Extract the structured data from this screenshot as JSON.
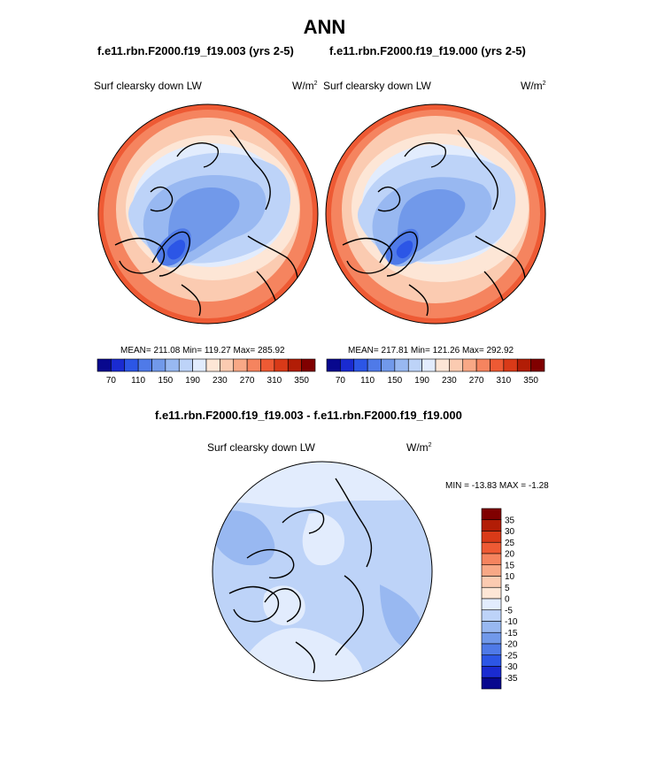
{
  "page": {
    "title": "ANN"
  },
  "panels": [
    {
      "case": "f.e11.rbn.F2000.f19_f19.003 (yrs 2-5)",
      "variable": "Surf clearsky down LW",
      "units": "W/m",
      "units_sup": "2",
      "stats": "MEAN= 211.08  Min= 119.27  Max= 285.92"
    },
    {
      "case": "f.e11.rbn.F2000.f19_f19.000 (yrs 2-5)",
      "variable": "Surf clearsky down LW",
      "units": "W/m",
      "units_sup": "2",
      "stats": "MEAN= 217.81  Min= 121.26  Max= 292.92"
    }
  ],
  "diff": {
    "title": "f.e11.rbn.F2000.f19_f19.003 - f.e11.rbn.F2000.f19_f19.000",
    "variable": "Surf clearsky down LW",
    "units": "W/m",
    "units_sup": "2",
    "minmax": "MIN = -13.83 MAX =  -1.28"
  },
  "chart_data": [
    {
      "type": "heatmap",
      "title": "f.e11.rbn.F2000.f19_f19.003 (yrs 2-5)",
      "subtitle": "Surf clearsky down LW",
      "units": "W/m2",
      "stats": {
        "mean": 211.08,
        "min": 119.27,
        "max": 285.92
      },
      "colorbar": {
        "levels": [
          70,
          90,
          110,
          130,
          150,
          170,
          190,
          210,
          230,
          250,
          270,
          290,
          310,
          330,
          350
        ],
        "tick_labels": [
          "70",
          "110",
          "150",
          "190",
          "230",
          "270",
          "310",
          "350"
        ],
        "colors": [
          "#08088e",
          "#1a2bd1",
          "#2c56e6",
          "#4f7ae8",
          "#7199ea",
          "#98b8f1",
          "#bdd3f8",
          "#e2ecfd",
          "#fde6d6",
          "#fbcbb1",
          "#f8a886",
          "#f5845f",
          "#ee5a34",
          "#d93a18",
          "#b21d06",
          "#800000"
        ]
      }
    },
    {
      "type": "heatmap",
      "title": "f.e11.rbn.F2000.f19_f19.000 (yrs 2-5)",
      "subtitle": "Surf clearsky down LW",
      "units": "W/m2",
      "stats": {
        "mean": 217.81,
        "min": 121.26,
        "max": 292.92
      },
      "colorbar": {
        "levels": [
          70,
          90,
          110,
          130,
          150,
          170,
          190,
          210,
          230,
          250,
          270,
          290,
          310,
          330,
          350
        ],
        "tick_labels": [
          "70",
          "110",
          "150",
          "190",
          "230",
          "270",
          "310",
          "350"
        ],
        "colors": [
          "#08088e",
          "#1a2bd1",
          "#2c56e6",
          "#4f7ae8",
          "#7199ea",
          "#98b8f1",
          "#bdd3f8",
          "#e2ecfd",
          "#fde6d6",
          "#fbcbb1",
          "#f8a886",
          "#f5845f",
          "#ee5a34",
          "#d93a18",
          "#b21d06",
          "#800000"
        ]
      }
    },
    {
      "type": "heatmap",
      "title": "f.e11.rbn.F2000.f19_f19.003 - f.e11.rbn.F2000.f19_f19.000",
      "subtitle": "Surf clearsky down LW",
      "units": "W/m2",
      "stats": {
        "min": -13.83,
        "max": -1.28
      },
      "colorbar": {
        "levels": [
          35,
          30,
          25,
          20,
          15,
          10,
          5,
          0,
          -5,
          -10,
          -15,
          -20,
          -25,
          -30,
          -35
        ],
        "tick_labels": [
          "35",
          "30",
          "25",
          "20",
          "15",
          "10",
          "5",
          "0",
          "-5",
          "-10",
          "-15",
          "-20",
          "-25",
          "-30",
          "-35"
        ],
        "colors": [
          "#800000",
          "#b21d06",
          "#d93a18",
          "#ee5a34",
          "#f5845f",
          "#f8a886",
          "#fbcbb1",
          "#fde6d6",
          "#e2ecfd",
          "#bdd3f8",
          "#98b8f1",
          "#7199ea",
          "#4f7ae8",
          "#2c56e6",
          "#1a2bd1",
          "#08088e"
        ]
      }
    }
  ]
}
